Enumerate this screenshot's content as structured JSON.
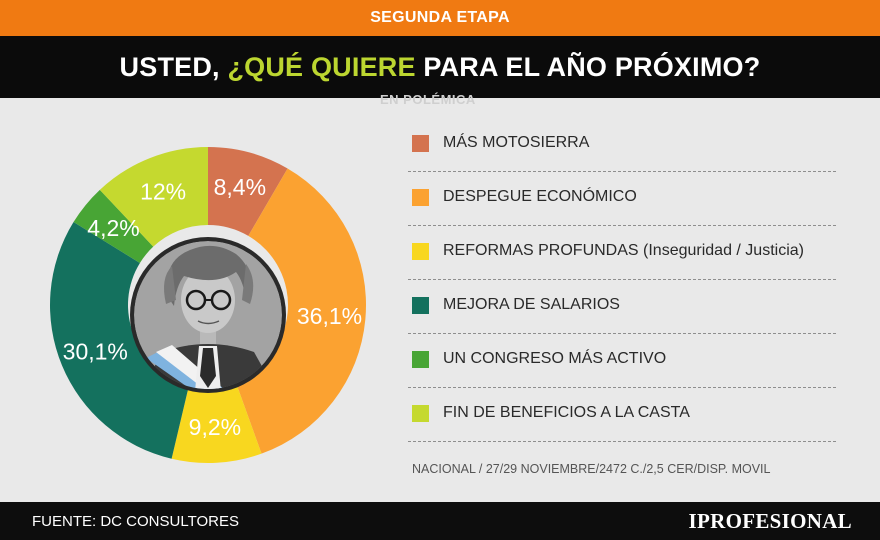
{
  "header": {
    "stage": "SEGUNDA ETAPA",
    "title_prefix": "USTED, ",
    "title_highlight": "¿QUÉ QUIERE",
    "title_suffix": " PARA EL AÑO PRÓXIMO?",
    "ghost_text": "EN POLÉMICA"
  },
  "chart_data": {
    "type": "pie",
    "variant": "donut",
    "title": "USTED, ¿QUÉ QUIERE PARA EL AÑO PRÓXIMO?",
    "start": "top, clockwise",
    "slices": [
      {
        "label": "MÁS MOTOSIERRA",
        "value": 8.4,
        "display": "8,4%",
        "color": "#d4734f"
      },
      {
        "label": "DESPEGUE ECONÓMICO",
        "value": 36.1,
        "display": "36,1%",
        "color": "#fba231"
      },
      {
        "label": "REFORMAS PROFUNDAS (Inseguridad / Justicia)",
        "value": 9.2,
        "display": "9,2%",
        "color": "#f8d71f"
      },
      {
        "label": "MEJORA DE SALARIOS",
        "value": 30.1,
        "display": "30,1%",
        "color": "#14715e"
      },
      {
        "label": "UN CONGRESO MÁS ACTIVO",
        "value": 4.2,
        "display": "4,2%",
        "color": "#48a535"
      },
      {
        "label": "FIN DE BENEFICIOS A LA CASTA",
        "value": 12,
        "display": "12%",
        "color": "#c5d92f"
      }
    ]
  },
  "footnote": "NACIONAL / 27/29 NOVIEMBRE/2472 C./2,5 CER/DISP. MOVIL",
  "footer": {
    "source": "FUENTE: DC CONSULTORES",
    "brand": "IPROFESIONAL"
  }
}
